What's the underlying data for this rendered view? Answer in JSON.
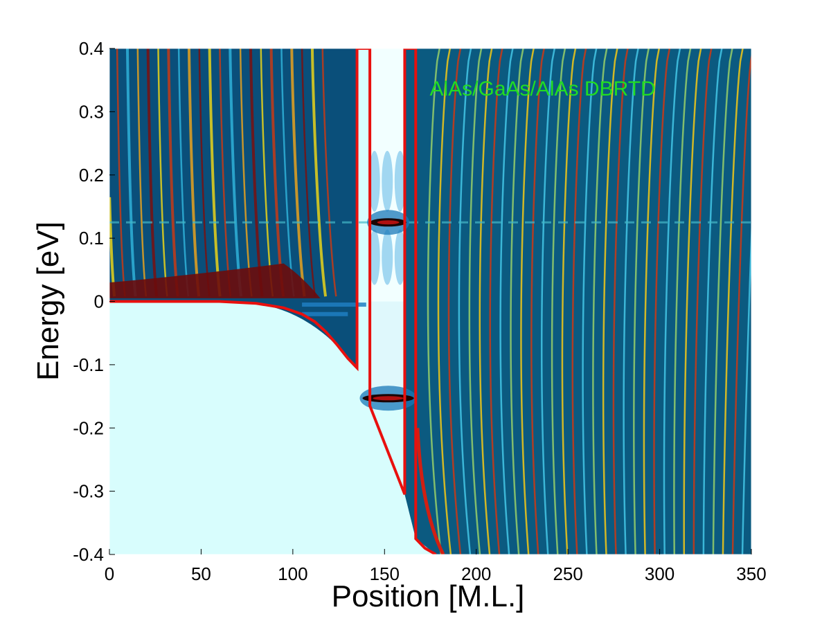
{
  "chart_data": {
    "type": "heatmap",
    "title": "",
    "xlabel": "Position [M.L.]",
    "ylabel": "Energy [eV]",
    "xlim": [
      0,
      350
    ],
    "ylim": [
      -0.4,
      0.4
    ],
    "x_ticks": [
      0,
      50,
      100,
      150,
      200,
      250,
      300,
      350
    ],
    "y_ticks": [
      -0.4,
      -0.3,
      -0.2,
      -0.1,
      0,
      0.1,
      0.2,
      0.3,
      0.4
    ],
    "y_tick_labels": [
      "-0.4",
      "-0.3",
      "-0.2",
      "-0.1",
      "0",
      "0.1",
      "0.2",
      "0.3",
      "0.4"
    ],
    "x_tick_labels": [
      "0",
      "50",
      "100",
      "150",
      "200",
      "250",
      "300",
      "350"
    ],
    "grid": false,
    "colormap": "jet (local density of states)",
    "annotation": {
      "text": "AlAs/GaAs/AlAs DBRTD",
      "x": 175,
      "y": 0.33,
      "color": "#22dd22"
    },
    "resonances": [
      {
        "energy": 0.125,
        "x_range": [
          142,
          162
        ]
      },
      {
        "energy": -0.153,
        "x_range": [
          138,
          166
        ]
      }
    ],
    "band_edge": {
      "name": "conduction band edge",
      "color": "#e8100e",
      "points": [
        [
          0,
          0
        ],
        [
          60,
          0
        ],
        [
          80,
          -0.003
        ],
        [
          95,
          -0.01
        ],
        [
          105,
          -0.02
        ],
        [
          112,
          -0.032
        ],
        [
          118,
          -0.048
        ],
        [
          124,
          -0.068
        ],
        [
          130,
          -0.09
        ],
        [
          135,
          -0.105
        ],
        [
          135,
          0.4
        ],
        [
          142,
          0.4
        ],
        [
          142,
          -0.165
        ],
        [
          161,
          -0.305
        ],
        [
          161,
          0.4
        ],
        [
          167,
          0.4
        ],
        [
          167,
          -0.375
        ],
        [
          172,
          -0.39
        ],
        [
          178,
          -0.4
        ]
      ]
    },
    "left_bound_states": [
      {
        "energy": -0.005,
        "x_range": [
          105,
          140
        ]
      },
      {
        "energy": -0.02,
        "x_range": [
          105,
          130
        ]
      }
    ],
    "background_color": "#d8fdfd"
  }
}
